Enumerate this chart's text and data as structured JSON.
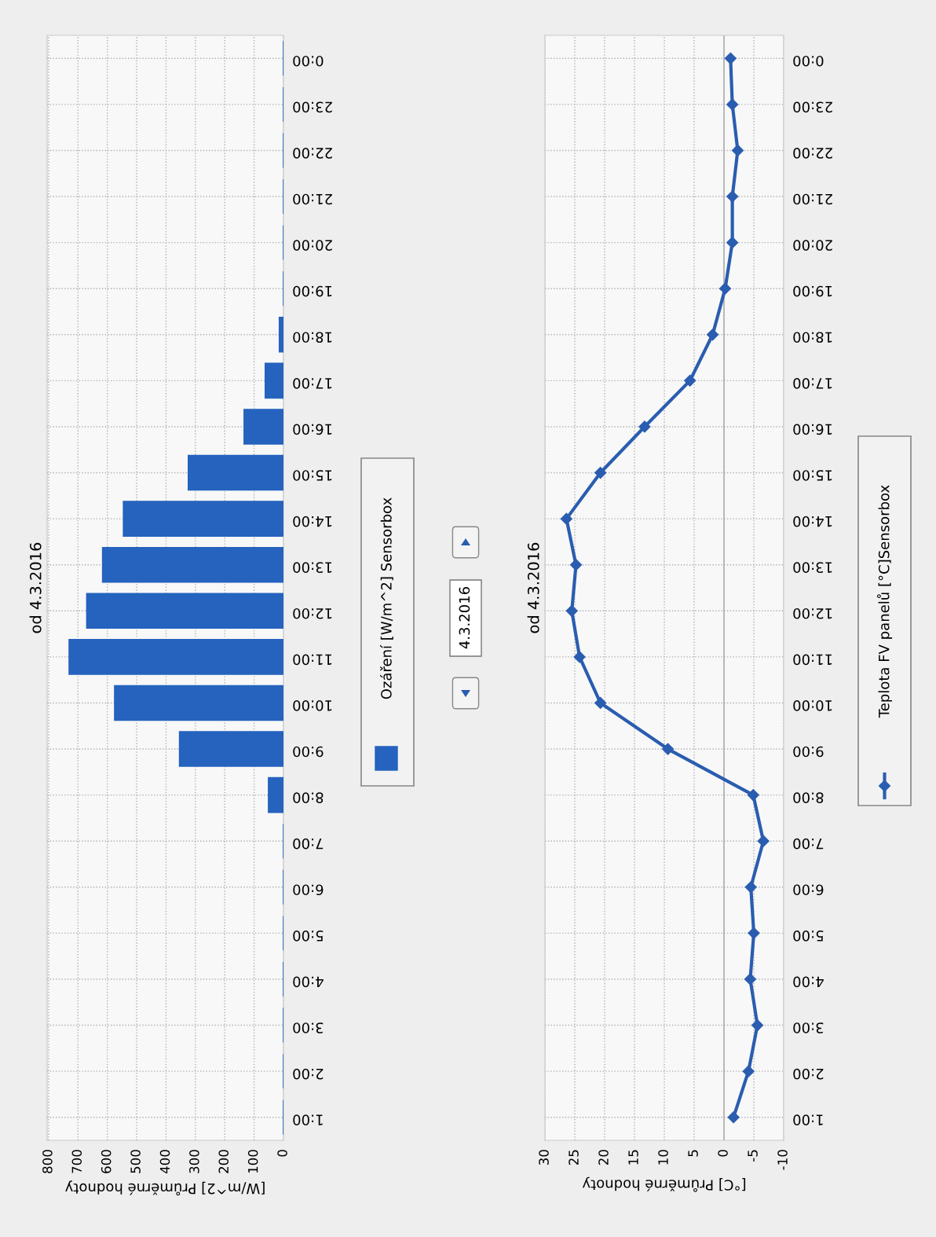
{
  "chart_data": [
    {
      "type": "bar",
      "orientation": "horizontal",
      "title": "od 4.3.2016",
      "xlabel": "[W/m^2] Průměrné hodnoty",
      "categories": [
        "0:00",
        "23:00",
        "22:00",
        "21:00",
        "20:00",
        "19:00",
        "18:00",
        "17:00",
        "16:00",
        "15:00",
        "14:00",
        "13:00",
        "12:00",
        "11:00",
        "10:00",
        "9:00",
        "8:00",
        "7:00",
        "6:00",
        "5:00",
        "4:00",
        "3:00",
        "2:00",
        "1:00"
      ],
      "series": [
        {
          "name": "Ozáření [W/m^2] Sensorbox",
          "color": "#2563be",
          "values": [
            0,
            0,
            0,
            0,
            0,
            0,
            14,
            62,
            134,
            324,
            545,
            616,
            670,
            730,
            575,
            354,
            51,
            0,
            0,
            0,
            0,
            0,
            0,
            0
          ]
        }
      ],
      "xlim": [
        805,
        0
      ],
      "xticks": [
        800,
        700,
        600,
        500,
        400,
        300,
        200,
        100,
        0
      ],
      "grid": true,
      "legend": "right",
      "annotations": [
        "4.3.2016"
      ]
    },
    {
      "type": "line",
      "orientation": "horizontal",
      "title": "od 4.3.2016",
      "xlabel": "[°C] Průměrné hodnoty",
      "categories": [
        "0:00",
        "23:00",
        "22:00",
        "21:00",
        "20:00",
        "19:00",
        "18:00",
        "17:00",
        "16:00",
        "15:00",
        "14:00",
        "13:00",
        "12:00",
        "11:00",
        "10:00",
        "9:00",
        "8:00",
        "7:00",
        "6:00",
        "5:00",
        "4:00",
        "3:00",
        "2:00",
        "1:00"
      ],
      "series": [
        {
          "name": "Teplota FV panelů [°C]Sensorbox",
          "color": "#2a5db0",
          "values": [
            -1.1,
            -1.4,
            -2.3,
            -1.4,
            -1.4,
            -0.2,
            1.9,
            5.7,
            13.3,
            20.7,
            26.4,
            24.8,
            25.5,
            24.2,
            20.7,
            9.4,
            -4.9,
            -6.6,
            -4.5,
            -5.0,
            -4.4,
            -5.6,
            -4.1,
            -1.6
          ]
        }
      ],
      "xlim": [
        30,
        -10
      ],
      "xticks": [
        30,
        25,
        20,
        15,
        10,
        5,
        0,
        -5,
        -10
      ],
      "grid": true,
      "legend": "right",
      "marker": "diamond",
      "line_style": "solid",
      "ref_lines": [
        {
          "axis": "x",
          "value": 0,
          "color": "#b4b4b4"
        }
      ]
    }
  ]
}
